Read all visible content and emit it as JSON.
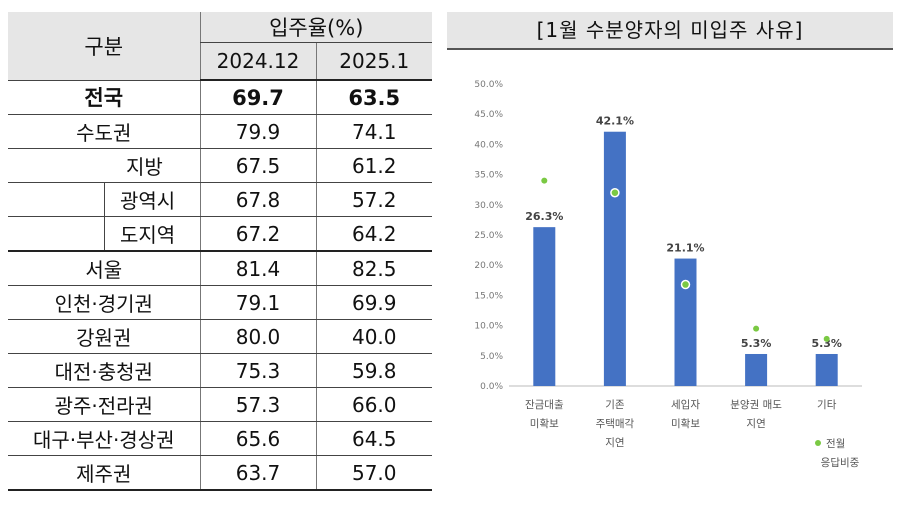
{
  "table": {
    "header_region": "구분",
    "header_rate": "입주율(%)",
    "col_prev": "2024.12",
    "col_curr": "2025.1",
    "rows": [
      {
        "name": "전국",
        "prev": "69.7",
        "curr": "63.5"
      },
      {
        "name": "수도권",
        "prev": "79.9",
        "curr": "74.1"
      },
      {
        "name": "지방",
        "prev": "67.5",
        "curr": "61.2"
      },
      {
        "name": "광역시",
        "prev": "67.8",
        "curr": "57.2"
      },
      {
        "name": "도지역",
        "prev": "67.2",
        "curr": "64.2"
      },
      {
        "name": "서울",
        "prev": "81.4",
        "curr": "82.5"
      },
      {
        "name": "인천·경기권",
        "prev": "79.1",
        "curr": "69.9"
      },
      {
        "name": "강원권",
        "prev": "80.0",
        "curr": "40.0"
      },
      {
        "name": "대전·충청권",
        "prev": "75.3",
        "curr": "59.8"
      },
      {
        "name": "광주·전라권",
        "prev": "57.3",
        "curr": "66.0"
      },
      {
        "name": "대구·부산·경상권",
        "prev": "65.6",
        "curr": "64.5"
      },
      {
        "name": "제주권",
        "prev": "63.7",
        "curr": "57.0"
      }
    ]
  },
  "chart_data": {
    "type": "bar",
    "title": "[1월 수분양자의 미입주 사유]",
    "categories": [
      [
        "잔금대출",
        "미확보"
      ],
      [
        "기존",
        "주택매각",
        "지연"
      ],
      [
        "세입자",
        "미확보"
      ],
      [
        "분양권 매도",
        "지연"
      ],
      [
        "기타"
      ]
    ],
    "series": [
      {
        "values": [
          26.3,
          42.1,
          21.1,
          5.3,
          5.3
        ],
        "labels": [
          "26.3%",
          "42.1%",
          "21.1%",
          "5.3%",
          "5.3%"
        ]
      },
      {
        "name": [
          "전월",
          "응답비중"
        ],
        "values": [
          34.0,
          32.0,
          16.8,
          9.5,
          7.8
        ]
      }
    ],
    "ylim": [
      0,
      50
    ],
    "yticks": [
      "0.0%",
      "5.0%",
      "10.0%",
      "15.0%",
      "20.0%",
      "25.0%",
      "30.0%",
      "35.0%",
      "40.0%",
      "45.0%",
      "50.0%"
    ],
    "grid": false,
    "legend": "bottom-right",
    "colors": {
      "bar": "#4472c4",
      "marker": "#7ac943"
    }
  }
}
